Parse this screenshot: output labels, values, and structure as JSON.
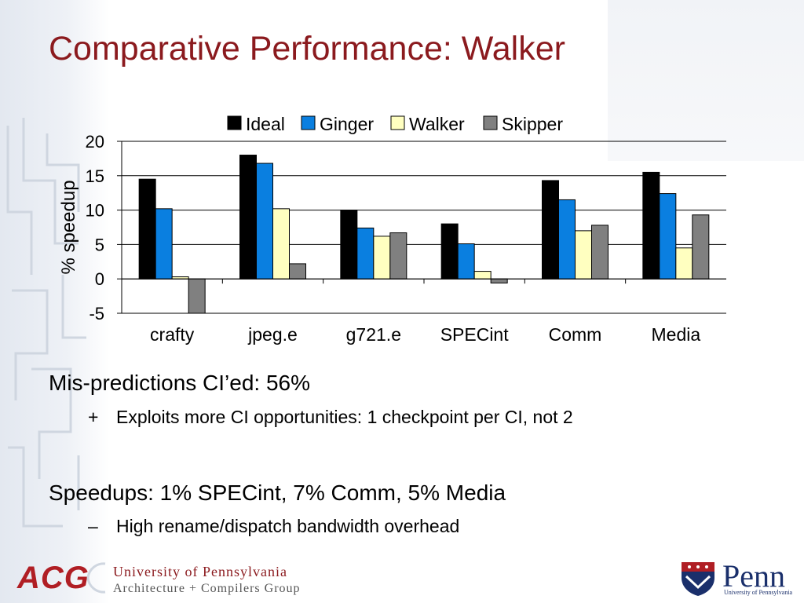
{
  "slide": {
    "title": "Comparative Performance: Walker"
  },
  "chart_data": {
    "type": "bar",
    "categories": [
      "crafty",
      "jpeg.e",
      "g721.e",
      "SPECint",
      "Comm",
      "Media"
    ],
    "series": [
      {
        "name": "Ideal",
        "color": "#000000",
        "values": [
          14.5,
          18.0,
          10.0,
          8.0,
          14.3,
          15.5
        ]
      },
      {
        "name": "Ginger",
        "color": "#0a7fe0",
        "values": [
          10.2,
          16.8,
          7.4,
          5.1,
          11.5,
          12.4
        ]
      },
      {
        "name": "Walker",
        "color": "#ffffc0",
        "values": [
          0.3,
          10.2,
          6.2,
          1.1,
          7.0,
          4.5
        ]
      },
      {
        "name": "Skipper",
        "color": "#808080",
        "values": [
          -5.0,
          2.2,
          6.7,
          -0.6,
          7.8,
          9.3
        ]
      }
    ],
    "ylabel": "% speedup",
    "ylim": [
      -5,
      20
    ],
    "yticks": [
      -5,
      0,
      5,
      10,
      15,
      20
    ],
    "grid": true,
    "legend": "top"
  },
  "bullets": [
    {
      "level": 1,
      "marker": "",
      "text": "Mis-predictions CI’ed: 56%"
    },
    {
      "level": 2,
      "marker": "+",
      "text": "Exploits more CI opportunities: 1 checkpoint per CI, not 2"
    },
    {
      "level": 1,
      "marker": "",
      "text": "Speedups: 1% SPECint, 7% Comm, 5% Media"
    },
    {
      "level": 2,
      "marker": "–",
      "text": "High rename/dispatch bandwidth overhead"
    }
  ],
  "footer": {
    "acg_logo": "ACG",
    "university_name": "University of Pennsylvania",
    "group_name": "Architecture + Compilers Group",
    "penn_logo": "Penn",
    "penn_sub": "University of Pennsylvania",
    "brand_color": "#8b1a1e"
  }
}
